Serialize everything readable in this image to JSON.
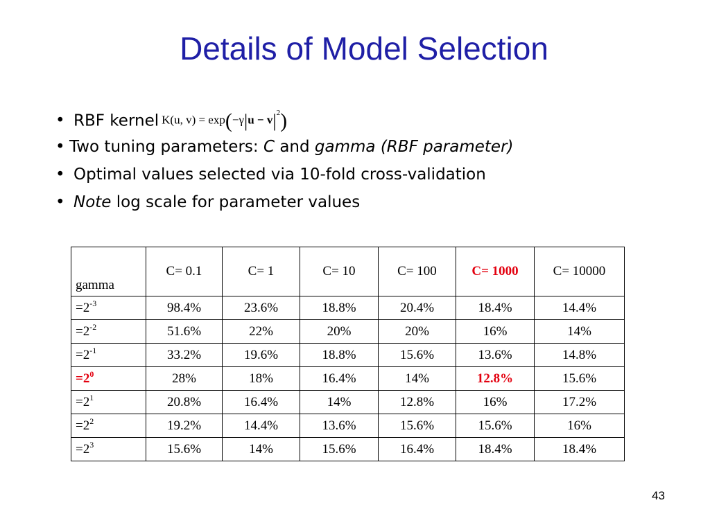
{
  "title": "Details of Model Selection",
  "bullets": [
    {
      "prefix": "RBF kernel"
    },
    {
      "pre": "Two tuning parameters: ",
      "c": "C",
      "mid": " and ",
      "gamma": "gamma (RBF parameter)"
    },
    {
      "text": "Optimal values selected via 10-fold cross-validation"
    },
    {
      "italic": "Note",
      "rest": " log scale for parameter values"
    }
  ],
  "formula": {
    "lhs": "K(u, v) = exp",
    "inner": "−γ",
    "norm": "u − v",
    "power": "2"
  },
  "table": {
    "corner_label": "gamma",
    "columns": [
      {
        "label": "C= 0.1",
        "highlight": false
      },
      {
        "label": "C= 1",
        "highlight": false
      },
      {
        "label": "C= 10",
        "highlight": false
      },
      {
        "label": "C= 100",
        "highlight": false
      },
      {
        "label": "C= 1000",
        "highlight": true
      },
      {
        "label": "C= 10000",
        "highlight": false
      }
    ],
    "rows": [
      {
        "base": "=2",
        "exp": "-3",
        "highlight": false,
        "values": [
          "98.4%",
          "23.6%",
          "18.8%",
          "20.4%",
          "18.4%",
          "14.4%"
        ]
      },
      {
        "base": "=2",
        "exp": "-2",
        "highlight": false,
        "values": [
          "51.6%",
          "22%",
          "20%",
          "20%",
          "16%",
          "14%"
        ]
      },
      {
        "base": "=2",
        "exp": "-1",
        "highlight": false,
        "values": [
          "33.2%",
          "19.6%",
          "18.8%",
          "15.6%",
          "13.6%",
          "14.8%"
        ]
      },
      {
        "base": "=2",
        "exp": "0",
        "highlight": true,
        "values": [
          "28%",
          "18%",
          "16.4%",
          "14%",
          "12.8%",
          "15.6%"
        ]
      },
      {
        "base": "=2",
        "exp": "1",
        "highlight": false,
        "values": [
          "20.8%",
          "16.4%",
          "14%",
          "12.8%",
          "16%",
          "17.2%"
        ]
      },
      {
        "base": "=2",
        "exp": "2",
        "highlight": false,
        "values": [
          "19.2%",
          "14.4%",
          "13.6%",
          "15.6%",
          "15.6%",
          "16%"
        ]
      },
      {
        "base": "=2",
        "exp": "3",
        "highlight": false,
        "values": [
          "15.6%",
          "14%",
          "15.6%",
          "16.4%",
          "18.4%",
          "18.4%"
        ]
      }
    ],
    "highlight_cell": {
      "row": 3,
      "col": 4
    },
    "highlight_color": "#e3000f"
  },
  "page_number": "43",
  "colors": {
    "title": "#1f1fa6",
    "highlight": "#e3000f",
    "text": "#000000"
  }
}
